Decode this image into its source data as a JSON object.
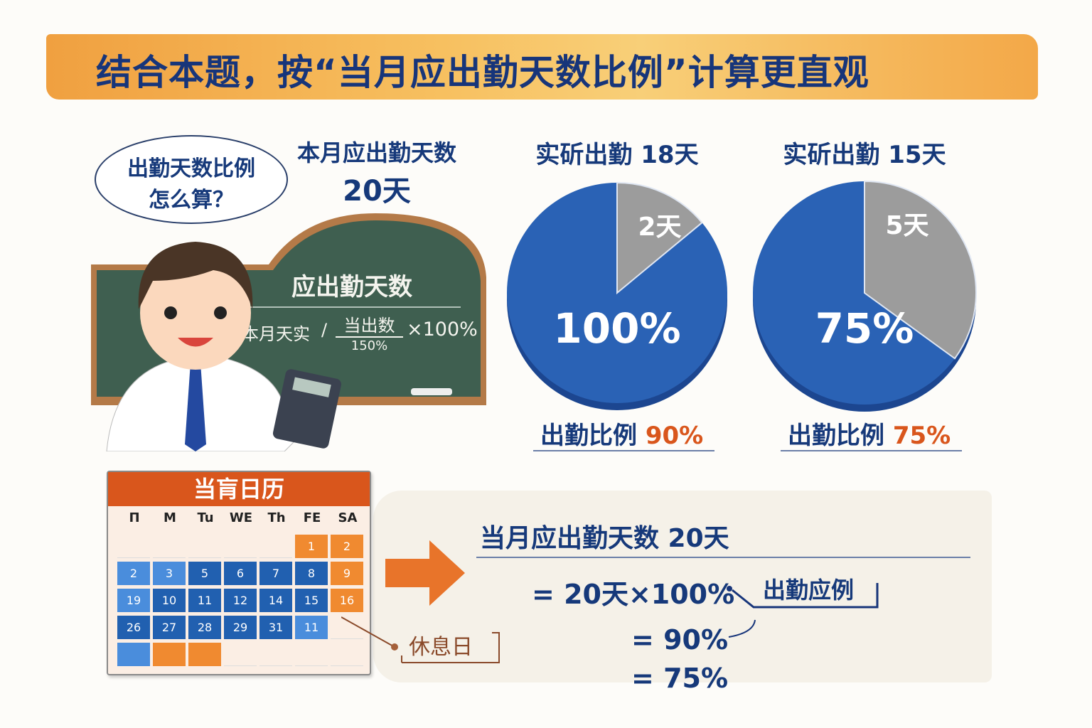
{
  "title": "结合本题，按“当月应出勤天数比例”计算更直观",
  "bubble": {
    "line1": "出勤天数比例",
    "line2": "怎么算？"
  },
  "month_days": {
    "label": "本月应出勤天数",
    "value": "20天"
  },
  "board": {
    "title": "应出勤天数",
    "left": "本月天实",
    "slash": "/",
    "numerator": "当出数",
    "denominator": "150%",
    "times": "×100%"
  },
  "pies": [
    {
      "header": "实斫出勤 18天",
      "slice_label": "2天",
      "slice_days": 2,
      "total_days": 20,
      "center_label": "100%",
      "ratio_label": "出勤比例",
      "ratio_value": "90%"
    },
    {
      "header": "实斫出勤 15天",
      "slice_label": "5天",
      "slice_days": 5,
      "total_days": 20,
      "center_label": "75%",
      "ratio_label": "出勤比例",
      "ratio_value": "75%"
    }
  ],
  "colors": {
    "blue": "#2a62b5",
    "gray": "#9c9c9c",
    "orange": "#d9561c",
    "navy": "#17357a"
  },
  "calendar": {
    "title": "当肓日历",
    "weekdays": [
      "П",
      "M",
      "Tu",
      "WE",
      "Th",
      "FE",
      "SA"
    ],
    "rows": [
      [
        [
          "",
          ""
        ],
        [
          "",
          ""
        ],
        [
          "",
          ""
        ],
        [
          "",
          ""
        ],
        [
          "",
          ""
        ],
        [
          "1",
          "o"
        ],
        [
          "2",
          "o"
        ]
      ],
      [
        [
          "2",
          "l"
        ],
        [
          "3",
          "l"
        ],
        [
          "5",
          "d"
        ],
        [
          "6",
          "d"
        ],
        [
          "7",
          "d"
        ],
        [
          "8",
          "d"
        ],
        [
          "9",
          "o"
        ]
      ],
      [
        [
          "19",
          "l"
        ],
        [
          "10",
          "d"
        ],
        [
          "11",
          "d"
        ],
        [
          "12",
          "d"
        ],
        [
          "14",
          "d"
        ],
        [
          "15",
          "d"
        ],
        [
          "16",
          "o"
        ]
      ],
      [
        [
          "26",
          "d"
        ],
        [
          "27",
          "d"
        ],
        [
          "28",
          "d"
        ],
        [
          "29",
          "d"
        ],
        [
          "31",
          "d"
        ],
        [
          "11",
          "l"
        ],
        [
          "",
          ""
        ]
      ],
      [
        [
          "",
          "l"
        ],
        [
          "",
          "o"
        ],
        [
          "",
          "o"
        ],
        [
          "",
          ""
        ],
        [
          "",
          ""
        ],
        [
          "",
          ""
        ],
        [
          "",
          ""
        ]
      ]
    ],
    "callout": "休息日"
  },
  "formula": {
    "heading": "当月应出勤天数 20天",
    "line1": "= 20天×100%",
    "note": "出勤应例",
    "line2": "= 90%",
    "line3": "= 75%"
  }
}
